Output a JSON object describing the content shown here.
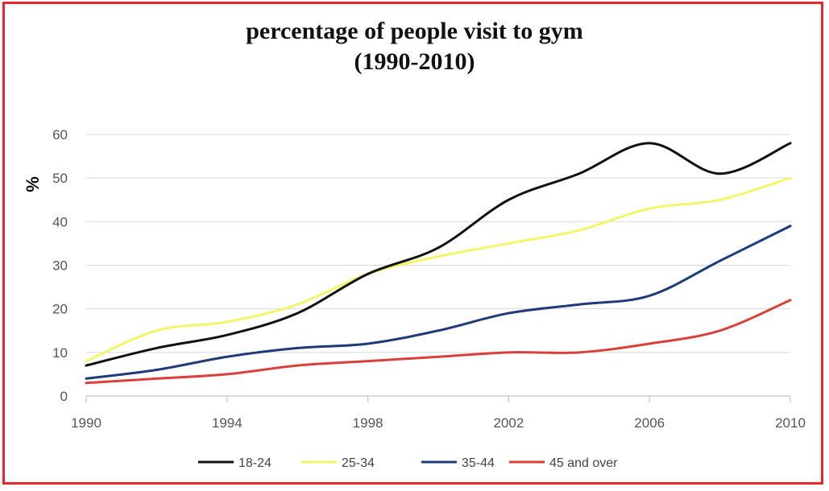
{
  "chart_data": {
    "type": "line",
    "title": "percentage of people visit to gym",
    "subtitle": "(1990-2010)",
    "ylabel": "%",
    "xlabel": "",
    "xlim": [
      1990,
      2010
    ],
    "ylim": [
      0,
      60
    ],
    "x_ticks": [
      1990,
      1994,
      1998,
      2002,
      2006,
      2010
    ],
    "y_ticks": [
      0,
      10,
      20,
      30,
      40,
      50,
      60
    ],
    "grid": "horizontal",
    "legend_position": "bottom",
    "x": [
      1990,
      1992,
      1994,
      1996,
      1998,
      2000,
      2002,
      2004,
      2006,
      2008,
      2010
    ],
    "series": [
      {
        "name": "18-24",
        "color": "#111111",
        "values": [
          7,
          11,
          14,
          19,
          28,
          34,
          45,
          51,
          58,
          51,
          58
        ]
      },
      {
        "name": "25-34",
        "color": "#f5f56a",
        "values": [
          8,
          15,
          17,
          21,
          28,
          32,
          35,
          38,
          43,
          45,
          50
        ]
      },
      {
        "name": "35-44",
        "color": "#1f3a78",
        "values": [
          4,
          6,
          9,
          11,
          12,
          15,
          19,
          21,
          23,
          31,
          39
        ]
      },
      {
        "name": "45 and over",
        "color": "#d9403a",
        "values": [
          3,
          4,
          5,
          7,
          8,
          9,
          10,
          10,
          12,
          15,
          22
        ]
      }
    ]
  }
}
